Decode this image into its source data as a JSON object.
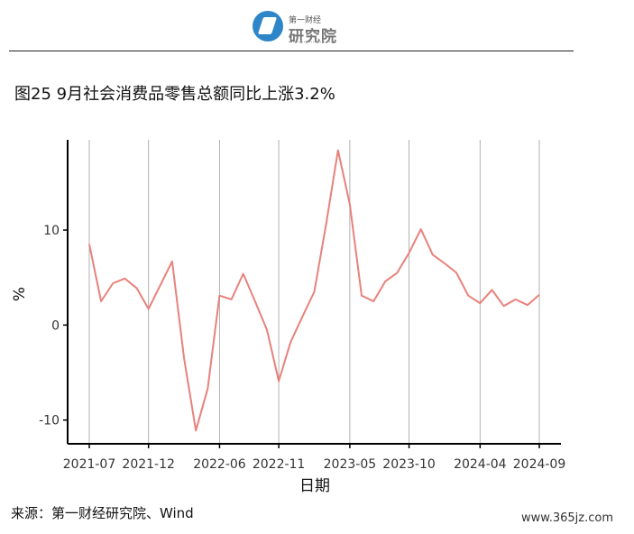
{
  "logo": {
    "small_text": "第一财经",
    "big_text": "研究院"
  },
  "title": "图25 9月社会消费品零售总额同比上涨3.2%",
  "source": "来源：第一财经研究院、Wind",
  "watermark": "www.365jz.com",
  "chart_data": {
    "type": "line",
    "title": "图25 9月社会消费品零售总额同比上涨3.2%",
    "xlabel": "日期",
    "ylabel": "%",
    "x": [
      "2021-07",
      "2021-08",
      "2021-09",
      "2021-10",
      "2021-11",
      "2021-12",
      "2022-01",
      "2022-02",
      "2022-03",
      "2022-04",
      "2022-05",
      "2022-06",
      "2022-07",
      "2022-08",
      "2022-09",
      "2022-10",
      "2022-11",
      "2022-12",
      "2023-01",
      "2023-02",
      "2023-03",
      "2023-04",
      "2023-05",
      "2023-06",
      "2023-07",
      "2023-08",
      "2023-09",
      "2023-10",
      "2023-11",
      "2023-12",
      "2024-01",
      "2024-02",
      "2024-03",
      "2024-04",
      "2024-05",
      "2024-06",
      "2024-07",
      "2024-08",
      "2024-09"
    ],
    "series": [
      {
        "values": [
          8.5,
          2.5,
          4.4,
          4.9,
          3.9,
          1.7,
          4.2,
          6.7,
          -3.5,
          -11.1,
          -6.7,
          3.1,
          2.7,
          5.4,
          2.5,
          -0.5,
          -5.9,
          -1.8,
          0.9,
          3.5,
          10.6,
          18.4,
          12.7,
          3.1,
          2.5,
          4.6,
          5.5,
          7.6,
          10.1,
          7.4,
          6.5,
          5.5,
          3.1,
          2.3,
          3.7,
          2.0,
          2.7,
          2.1,
          3.2
        ]
      }
    ],
    "xticks": [
      "2021-07",
      "2021-12",
      "2022-06",
      "2022-11",
      "2023-05",
      "2023-10",
      "2024-04",
      "2024-09"
    ],
    "yticks": [
      -10,
      0,
      10
    ],
    "ylim": [
      -12.5,
      19.5
    ],
    "grid": "vertical",
    "line_color": "#e8817b"
  }
}
